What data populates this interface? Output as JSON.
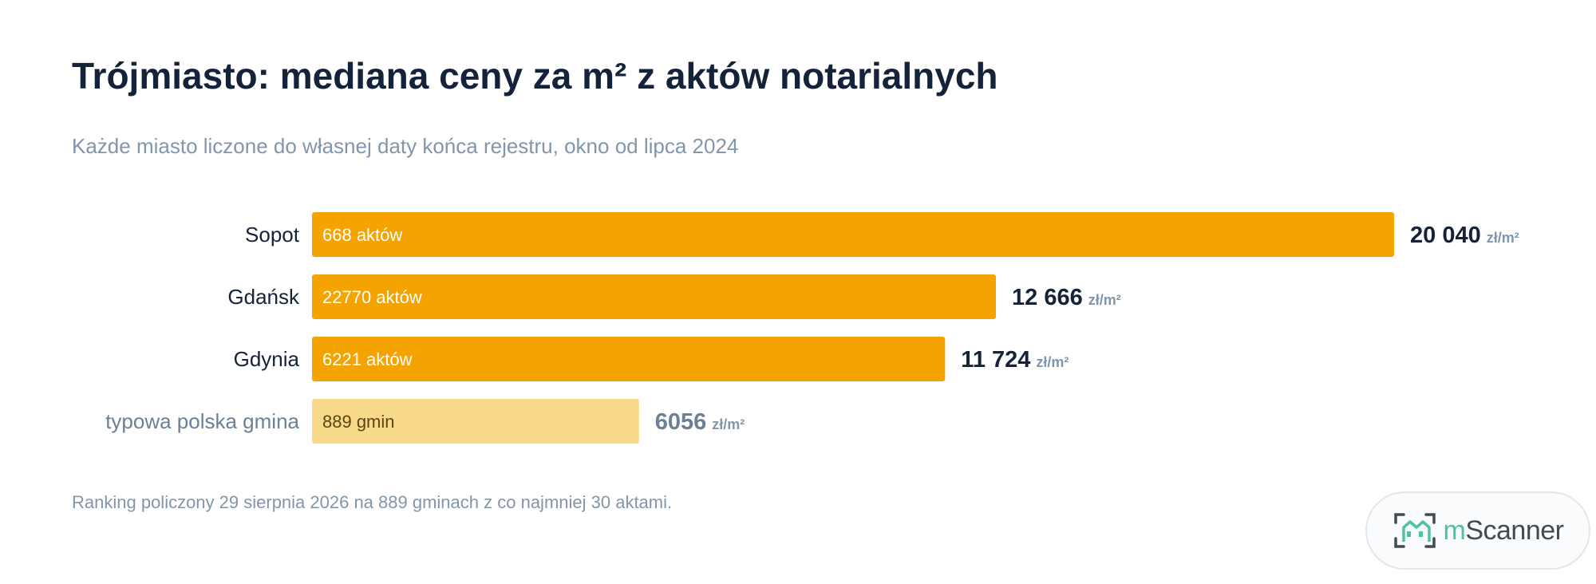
{
  "title": "Trójmiasto: mediana ceny za m² z aktów notarialnych",
  "subtitle": "Każde miasto liczone do własnej daty końca rejestru, okno od lipca 2024",
  "footnote": "Ranking policzony 29 sierpnia 2026 na 889 gminach z co najmniej 30 aktami.",
  "brand": {
    "prefix": "m",
    "name": "Scanner",
    "logo_icon": "house-frame-icon"
  },
  "colors": {
    "accent": "#f5a300",
    "baseline": "#f8d98a",
    "text": "#14223a",
    "muted": "#8196ad"
  },
  "chart_data": {
    "type": "bar",
    "orientation": "horizontal",
    "title": "Trójmiasto: mediana ceny za m² z aktów notarialnych",
    "subtitle": "Każde miasto liczone do własnej daty końca rejestru, okno od lipca 2024",
    "unit": "zł/m²",
    "xlim": [
      0,
      20040
    ],
    "grid": false,
    "categories": [
      "Sopot",
      "Gdańsk",
      "Gdynia",
      "typowa polska gmina"
    ],
    "values": [
      20040,
      12666,
      11724,
      6056
    ],
    "value_labels": [
      "20 040",
      "12 666",
      "11 724",
      "6056"
    ],
    "bar_labels": [
      "668 aktów",
      "22770 aktów",
      "6221 aktów",
      "889 gmin"
    ],
    "highlight": [
      false,
      false,
      false,
      true
    ]
  }
}
